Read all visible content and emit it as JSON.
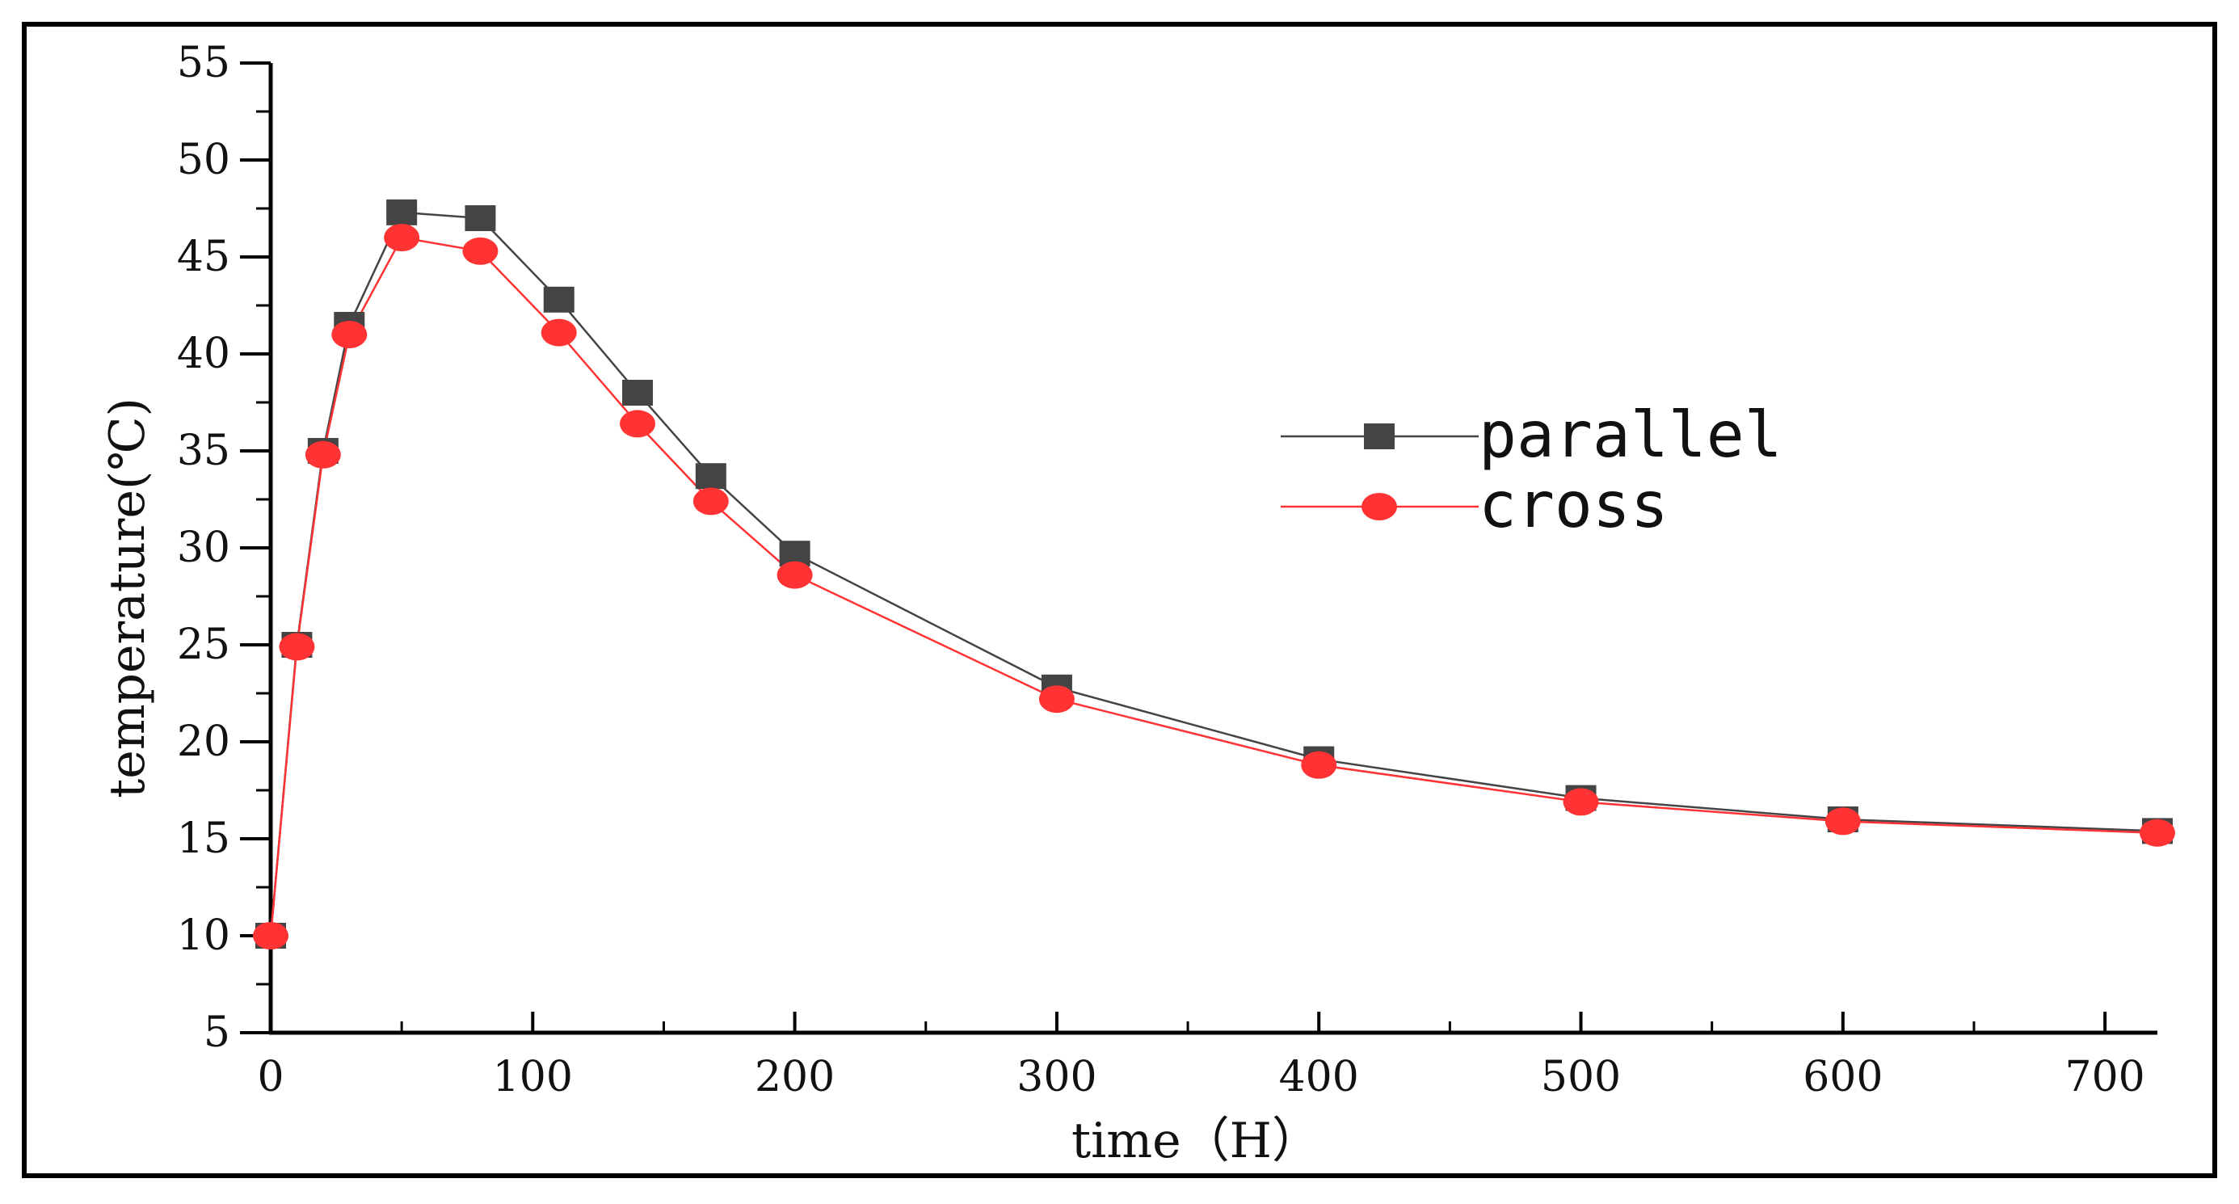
{
  "chart_data": {
    "type": "line",
    "title": "",
    "xlabel": "time（H）",
    "ylabel": "temperature(℃)",
    "xlim": [
      0,
      720
    ],
    "ylim": [
      5,
      55
    ],
    "xticks": [
      0,
      100,
      200,
      300,
      400,
      500,
      600,
      700
    ],
    "yticks": [
      5,
      10,
      15,
      20,
      25,
      30,
      35,
      40,
      45,
      50,
      55
    ],
    "x": [
      0,
      10,
      20,
      30,
      50,
      80,
      110,
      140,
      168,
      200,
      300,
      400,
      500,
      600,
      720
    ],
    "series": [
      {
        "name": "parallel",
        "color": "#444444",
        "marker": "square",
        "values": [
          10.0,
          25.0,
          35.0,
          41.5,
          47.3,
          47.0,
          42.8,
          38.0,
          33.7,
          29.7,
          22.8,
          19.1,
          17.1,
          16.0,
          15.4
        ]
      },
      {
        "name": "cross",
        "color": "#ff3333",
        "marker": "circle",
        "values": [
          10.0,
          24.9,
          34.8,
          41.0,
          46.0,
          45.3,
          41.1,
          36.4,
          32.4,
          28.6,
          22.2,
          18.8,
          16.9,
          15.9,
          15.3
        ]
      }
    ],
    "legend": "center-right",
    "grid": false
  }
}
